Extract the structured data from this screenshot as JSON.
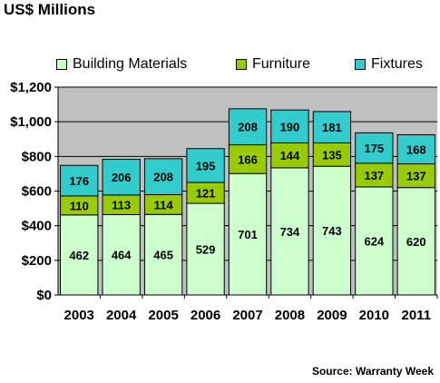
{
  "title": "US$ Millions",
  "source": "Source: Warranty Week",
  "legend": {
    "items": [
      {
        "label": "Building Materials",
        "color": "#ccffcc"
      },
      {
        "label": "Furniture",
        "color": "#99cc00"
      },
      {
        "label": "Fixtures",
        "color": "#33cccc"
      }
    ],
    "position": "top"
  },
  "chart_data": {
    "type": "bar",
    "stacked": true,
    "title": "US$ Millions",
    "categories": [
      "2003",
      "2004",
      "2005",
      "2006",
      "2007",
      "2008",
      "2009",
      "2010",
      "2011"
    ],
    "series": [
      {
        "name": "Building Materials",
        "color": "#ccffcc",
        "values": [
          462,
          464,
          465,
          529,
          701,
          734,
          743,
          624,
          620
        ]
      },
      {
        "name": "Furniture",
        "color": "#99cc00",
        "values": [
          110,
          113,
          114,
          121,
          166,
          144,
          135,
          137,
          137
        ]
      },
      {
        "name": "Fixtures",
        "color": "#33cccc",
        "values": [
          176,
          206,
          208,
          195,
          208,
          190,
          181,
          175,
          168
        ]
      }
    ],
    "ylim": [
      0,
      1200
    ],
    "yticks": [
      0,
      200,
      400,
      600,
      800,
      1000,
      1200
    ],
    "ytick_labels": [
      "$0",
      "$200",
      "$400",
      "$600",
      "$800",
      "$1,000",
      "$1,200"
    ],
    "grid": true,
    "plot_background": "#c0c0c0",
    "xlabel": "",
    "ylabel": ""
  }
}
